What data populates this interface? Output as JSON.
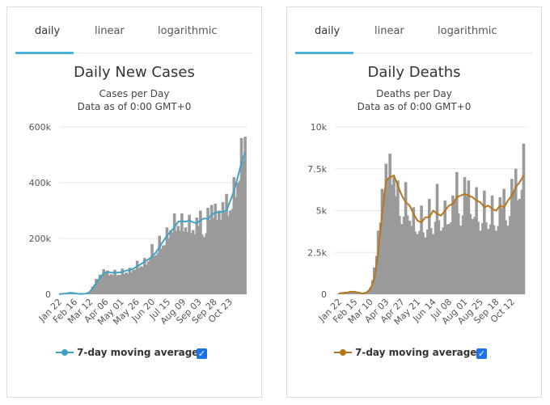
{
  "tabs": [
    "daily",
    "linear",
    "logarithmic"
  ],
  "legend_label": "7-day moving average",
  "chart_data": [
    {
      "type": "bar",
      "title": "Daily New Cases",
      "subtitle": "Cases per Day",
      "subtitle2": "Data as of 0:00 GMT+0",
      "x_tick_labels": [
        "Jan 22",
        "Feb 16",
        "Mar 12",
        "Apr 06",
        "May 01",
        "May 26",
        "Jun 20",
        "Jul 15",
        "Aug 09",
        "Sep 03",
        "Sep 28",
        "Oct 23"
      ],
      "y_tick_labels": [
        "0",
        "200k",
        "400k",
        "600k"
      ],
      "ylim": [
        0,
        600000
      ],
      "grid": true,
      "legend": "bottom",
      "line_color": "#3fa3c4",
      "bar_color": "#9a9a9a",
      "x_days_from_jan22": [
        0,
        6,
        12,
        18,
        24,
        30,
        36,
        42,
        48,
        54,
        60,
        66,
        72,
        78,
        84,
        90,
        96,
        102,
        108,
        114,
        120,
        126,
        132,
        138,
        144,
        150,
        156,
        162,
        168,
        174,
        180,
        186,
        192,
        198,
        204,
        210,
        216,
        222,
        228,
        234,
        240,
        246,
        252,
        258,
        264,
        270,
        276,
        282,
        288,
        294,
        300
      ],
      "daily": [
        1000,
        3000,
        4000,
        8000,
        3000,
        2000,
        1000,
        3000,
        8000,
        28000,
        55000,
        70000,
        90000,
        85000,
        72000,
        88000,
        70000,
        92000,
        78000,
        95000,
        88000,
        120000,
        100000,
        130000,
        118000,
        180000,
        140000,
        210000,
        175000,
        240000,
        230000,
        290000,
        245000,
        290000,
        240000,
        285000,
        230000,
        275000,
        300000,
        205000,
        310000,
        320000,
        325000,
        300000,
        330000,
        360000,
        300000,
        420000,
        400000,
        560000,
        565000
      ],
      "moving_average": [
        500,
        2000,
        3000,
        5000,
        4000,
        2000,
        1000,
        2000,
        5000,
        20000,
        40000,
        60000,
        75000,
        80000,
        78000,
        77000,
        78000,
        80000,
        85000,
        87000,
        92000,
        100000,
        108000,
        118000,
        125000,
        135000,
        150000,
        170000,
        190000,
        210000,
        225000,
        240000,
        260000,
        262000,
        260000,
        265000,
        258000,
        255000,
        265000,
        272000,
        270000,
        285000,
        293000,
        294000,
        296000,
        300000,
        335000,
        370000,
        420000,
        470000,
        510000
      ]
    },
    {
      "type": "bar",
      "title": "Daily Deaths",
      "subtitle": "Deaths per Day",
      "subtitle2": "Data as of 0:00 GMT+0",
      "x_tick_labels": [
        "Jan 22",
        "Feb 15",
        "Mar 10",
        "Apr 03",
        "Apr 27",
        "May 21",
        "Jun 14",
        "Jul 08",
        "Aug 01",
        "Aug 25",
        "Sep 18",
        "Oct 12"
      ],
      "y_tick_labels": [
        "0",
        "2.5k",
        "5k",
        "7.5k",
        "10k"
      ],
      "ylim": [
        0,
        10000
      ],
      "grid": true,
      "legend": "bottom",
      "line_color": "#b8761b",
      "bar_color": "#9a9a9a",
      "x_days_from_jan22": [
        0,
        6,
        12,
        18,
        24,
        30,
        36,
        42,
        48,
        54,
        60,
        66,
        72,
        78,
        84,
        90,
        96,
        102,
        108,
        114,
        120,
        126,
        132,
        138,
        144,
        150,
        156,
        162,
        168,
        174,
        180,
        186,
        192,
        198,
        204,
        210,
        216,
        222,
        228,
        234,
        240,
        246,
        252,
        258,
        264,
        270,
        276,
        282
      ],
      "daily": [
        50,
        80,
        100,
        150,
        150,
        100,
        50,
        100,
        400,
        1600,
        3800,
        6300,
        7800,
        8400,
        7000,
        6800,
        4200,
        6700,
        4400,
        5200,
        3600,
        5300,
        3400,
        5700,
        3600,
        6600,
        3800,
        5600,
        4200,
        5900,
        7300,
        4100,
        7000,
        6800,
        4500,
        6400,
        3800,
        6200,
        3900,
        5900,
        3800,
        5800,
        6300,
        4100,
        6900,
        7500,
        5700,
        9000
      ],
      "moving_average": [
        50,
        80,
        100,
        150,
        150,
        100,
        50,
        100,
        300,
        900,
        2500,
        4800,
        6800,
        7000,
        7100,
        6500,
        5900,
        5500,
        5300,
        4800,
        4400,
        4300,
        4600,
        4600,
        5000,
        4800,
        4700,
        5000,
        5300,
        5400,
        5800,
        5900,
        6000,
        5900,
        5800,
        5600,
        5500,
        5200,
        5300,
        5100,
        5000,
        5300,
        5200,
        5600,
        5900,
        6400,
        6700,
        7100
      ]
    }
  ]
}
